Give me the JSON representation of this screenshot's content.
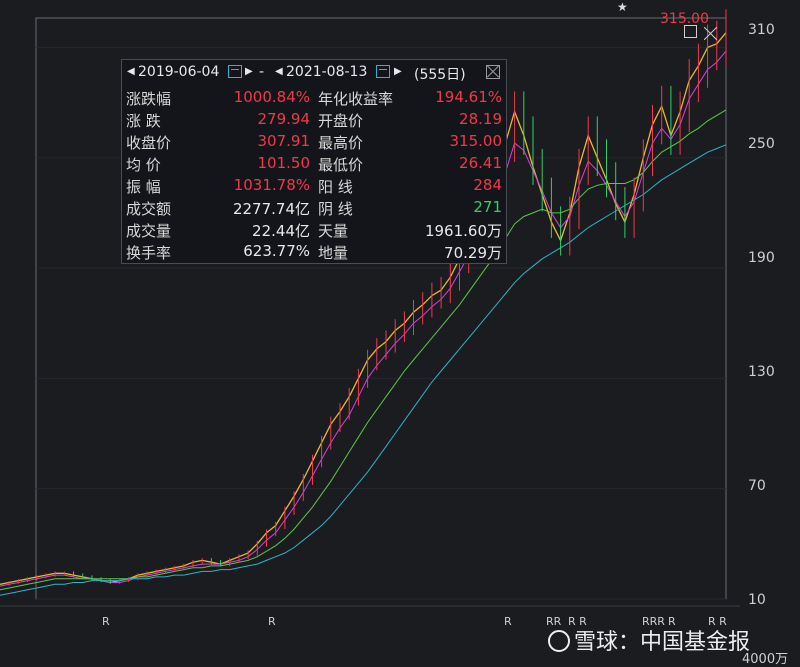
{
  "chart_data": {
    "type": "line",
    "title": "",
    "xlabel": "",
    "ylabel": "",
    "ylim": [
      10,
      320
    ],
    "yticks": [
      10,
      70,
      130,
      190,
      250,
      310
    ],
    "max_label": "315.00",
    "x_label_count": 555,
    "series": [
      {
        "color": "#e8b92f",
        "values": [
          18,
          19,
          20,
          21,
          22,
          23,
          24,
          24,
          23,
          22,
          21,
          20,
          19,
          20,
          21,
          23,
          24,
          25,
          26,
          27,
          28,
          30,
          31,
          30,
          29,
          31,
          33,
          35,
          40,
          46,
          50,
          58,
          66,
          75,
          85,
          95,
          105,
          112,
          120,
          130,
          140,
          146,
          150,
          156,
          160,
          166,
          170,
          175,
          178,
          185,
          195,
          205,
          215,
          225,
          235,
          258,
          275,
          262,
          245,
          230,
          215,
          205,
          220,
          245,
          262,
          250,
          238,
          225,
          215,
          230,
          250,
          268,
          278,
          262,
          275,
          292,
          300,
          310,
          312,
          318
        ]
      },
      {
        "color": "#d93fe0",
        "values": [
          17,
          18,
          19,
          20,
          21,
          22,
          23,
          23,
          22,
          21,
          21,
          20,
          19,
          19,
          20,
          22,
          23,
          24,
          25,
          26,
          27,
          28,
          29,
          29,
          29,
          30,
          31,
          33,
          37,
          42,
          46,
          53,
          60,
          68,
          77,
          86,
          95,
          103,
          110,
          120,
          130,
          137,
          143,
          149,
          154,
          160,
          164,
          169,
          173,
          179,
          188,
          197,
          206,
          216,
          225,
          242,
          258,
          254,
          243,
          232,
          220,
          212,
          218,
          235,
          248,
          243,
          235,
          226,
          218,
          226,
          242,
          258,
          266,
          260,
          268,
          282,
          290,
          298,
          302,
          308
        ]
      },
      {
        "color": "#5bc74a",
        "values": [
          15,
          16,
          17,
          18,
          19,
          20,
          21,
          21,
          21,
          21,
          21,
          21,
          21,
          21,
          21,
          22,
          22,
          23,
          24,
          25,
          26,
          27,
          27,
          28,
          28,
          29,
          30,
          31,
          33,
          36,
          39,
          43,
          48,
          54,
          60,
          67,
          74,
          82,
          90,
          98,
          106,
          113,
          120,
          127,
          134,
          140,
          146,
          152,
          158,
          164,
          170,
          177,
          184,
          191,
          198,
          206,
          214,
          218,
          220,
          222,
          220,
          220,
          222,
          228,
          233,
          235,
          236,
          236,
          236,
          238,
          242,
          248,
          253,
          256,
          259,
          263,
          266,
          270,
          273,
          276
        ]
      },
      {
        "color": "#2fb3c8",
        "values": [
          12,
          13,
          14,
          15,
          16,
          17,
          18,
          18,
          19,
          19,
          20,
          20,
          20,
          20,
          21,
          21,
          21,
          22,
          22,
          23,
          23,
          24,
          25,
          25,
          26,
          26,
          27,
          28,
          29,
          31,
          33,
          35,
          38,
          42,
          46,
          50,
          55,
          61,
          67,
          73,
          79,
          86,
          93,
          100,
          107,
          114,
          121,
          128,
          134,
          140,
          146,
          152,
          158,
          164,
          170,
          176,
          182,
          187,
          191,
          195,
          198,
          201,
          204,
          208,
          212,
          215,
          218,
          221,
          224,
          227,
          230,
          234,
          238,
          241,
          244,
          247,
          250,
          253,
          255,
          257
        ]
      }
    ]
  },
  "y_axis": {
    "ticks": [
      "310",
      "250",
      "190",
      "130",
      "70",
      "10"
    ]
  },
  "panel": {
    "start_date": "2019-06-04",
    "dash": "-",
    "end_date": "2021-08-13",
    "days": "(555日)",
    "rows": [
      {
        "l1": "涨跌幅",
        "v1": "1000.84%",
        "c1": "red",
        "l2": "年化收益率",
        "v2": "194.61%",
        "c2": "red"
      },
      {
        "l1": "涨    跌",
        "v1": "279.94",
        "c1": "red",
        "l2": "开盘价",
        "v2": "28.19",
        "c2": "red"
      },
      {
        "l1": "收盘价",
        "v1": "307.91",
        "c1": "red",
        "l2": "最高价",
        "v2": "315.00",
        "c2": "red"
      },
      {
        "l1": "均    价",
        "v1": "101.50",
        "c1": "red",
        "l2": "最低价",
        "v2": "26.41",
        "c2": "red"
      },
      {
        "l1": "振    幅",
        "v1": "1031.78%",
        "c1": "red",
        "l2": "阳    线",
        "v2": "284",
        "c2": "red"
      },
      {
        "l1": "成交额",
        "v1": "2277.74亿",
        "c1": "white",
        "l2": "阴    线",
        "v2": "271",
        "c2": "green"
      },
      {
        "l1": "成交量",
        "v1": "22.44亿",
        "c1": "white",
        "l2": "天量",
        "v2": "1961.60万",
        "c2": "white"
      },
      {
        "l1": "换手率",
        "v1": "623.77%",
        "c1": "white",
        "l2": "地量",
        "v2": "70.29万",
        "c2": "white"
      }
    ]
  },
  "r_markers": [
    "R",
    "R",
    "R",
    "RR",
    "R R",
    "RRR",
    "R",
    "R R"
  ],
  "watermark": "雪球：中国基金报",
  "bottom_unit": "4000万",
  "star": "★"
}
